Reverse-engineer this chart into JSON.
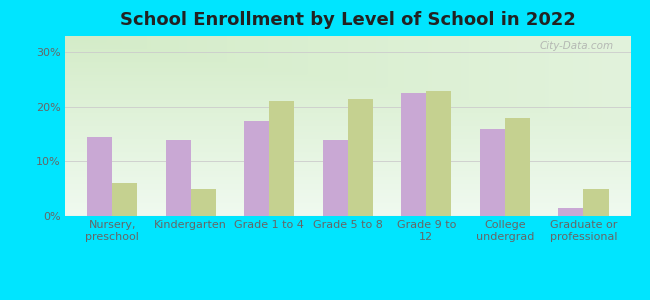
{
  "title": "School Enrollment by Level of School in 2022",
  "categories": [
    "Nursery,\npreschool",
    "Kindergarten",
    "Grade 1 to 4",
    "Grade 5 to 8",
    "Grade 9 to\n12",
    "College\nundergrad",
    "Graduate or\nprofessional"
  ],
  "zip_values": [
    14.5,
    14.0,
    17.5,
    14.0,
    22.5,
    16.0,
    1.5
  ],
  "mn_values": [
    6.0,
    5.0,
    21.0,
    21.5,
    23.0,
    18.0,
    5.0
  ],
  "zip_color": "#c9a8d4",
  "mn_color": "#c5d190",
  "background_color": "#00e5ff",
  "grad_top_color": "#d4ecc8",
  "grad_bottom_color": "#f0faf0",
  "ylabel_ticks": [
    "0%",
    "10%",
    "20%",
    "30%"
  ],
  "yticks": [
    0,
    10,
    20,
    30
  ],
  "ylim": [
    0,
    33
  ],
  "watermark": "City-Data.com",
  "title_fontsize": 13,
  "tick_fontsize": 8,
  "legend_fontsize": 9,
  "bar_width": 0.32
}
